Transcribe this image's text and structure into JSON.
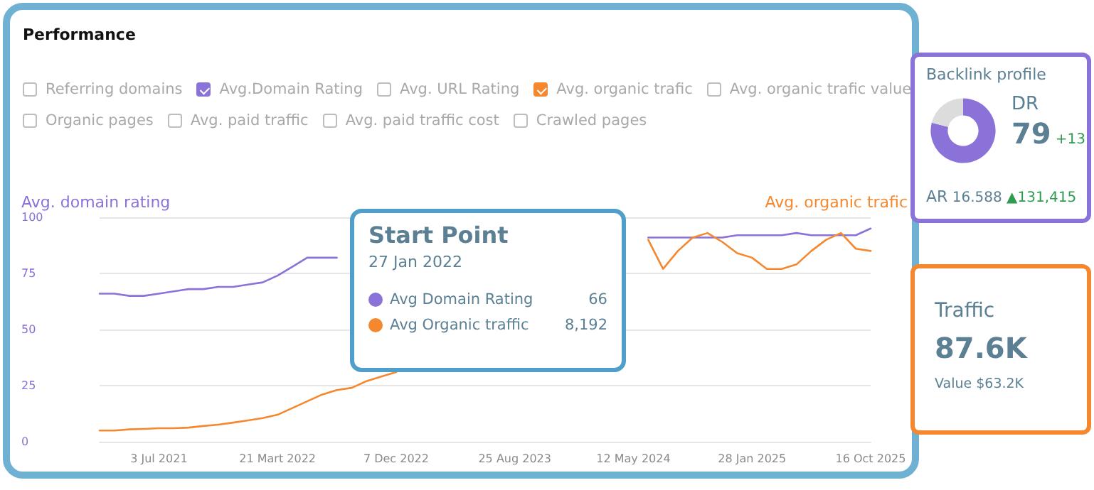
{
  "chart_data": [
    {
      "type": "line",
      "title": "Performance",
      "ylabel": "Avg. domain rating",
      "y2label": "Avg. organic trafic",
      "categories": [
        null,
        null,
        null,
        null,
        "3 Jul 2021",
        null,
        null,
        null,
        null,
        null,
        null,
        null,
        "21 Mart 2022",
        null,
        null,
        null,
        null,
        null,
        null,
        null,
        "7 Dec 2022",
        null,
        null,
        null,
        null,
        null,
        null,
        null,
        "25 Aug 2023",
        null,
        null,
        null,
        null,
        null,
        null,
        null,
        "12 May 2024",
        null,
        null,
        null,
        null,
        null,
        null,
        null,
        "28 Jan 2025",
        null,
        null,
        null,
        null,
        null,
        null,
        null,
        "16 Oct 2025"
      ],
      "series": [
        {
          "name": "Avg.Domain Rating",
          "color": "#8b72d9",
          "values": [
            66,
            66,
            65,
            65,
            66,
            67,
            68,
            68,
            69,
            69,
            70,
            71,
            74,
            78,
            82,
            82,
            82,
            null,
            null,
            null,
            null,
            null,
            null,
            null,
            null,
            null,
            null,
            null,
            null,
            null,
            null,
            null,
            null,
            null,
            null,
            null,
            null,
            91,
            91,
            91,
            91,
            91,
            91,
            92,
            92,
            92,
            92,
            93,
            92,
            92,
            92,
            92,
            95
          ]
        },
        {
          "name": "Avg. organic trafic",
          "color": "#f5882e",
          "values": [
            5,
            5,
            5.5,
            5.7,
            6,
            6,
            6.3,
            7,
            7.6,
            8.5,
            9.5,
            10.5,
            12,
            15,
            18,
            21,
            23,
            24,
            27,
            29,
            31,
            null,
            null,
            null,
            null,
            null,
            null,
            null,
            null,
            null,
            null,
            null,
            null,
            null,
            null,
            null,
            null,
            90,
            77,
            85,
            91,
            93,
            89,
            84,
            82,
            77,
            77,
            79,
            85,
            90,
            93,
            86,
            85
          ]
        }
      ],
      "ylim": [
        0,
        100
      ],
      "yticks": [
        0,
        25,
        50,
        75,
        100
      ],
      "grid": "y",
      "legend": "top left",
      "marker": "none",
      "line_style": "solid",
      "annotations": [
        "Referring domains",
        "Avg. URL Rating",
        "Avg. organic trafic value",
        "Organic pages",
        "Avg. paid traffic",
        "Avg. paid traffic cost",
        "Crawled pages",
        "Start Point",
        "27 Jan 2022",
        "Avg Domain Rating",
        "66",
        "Avg Organic traffic",
        "8,192"
      ]
    },
    {
      "type": "donut",
      "title": "Backlink profile",
      "categories": [
        null,
        null
      ],
      "values": [
        79,
        21
      ],
      "colors": [
        "#8b72d9",
        "#dcdcdc"
      ],
      "annotations": [
        "DR",
        "79",
        "+13",
        "AR",
        "16.588",
        "▲131,415"
      ]
    },
    {
      "type": "other",
      "title": "Traffic",
      "annotations": [
        "87.6K",
        "Value $63.2K"
      ]
    }
  ]
}
